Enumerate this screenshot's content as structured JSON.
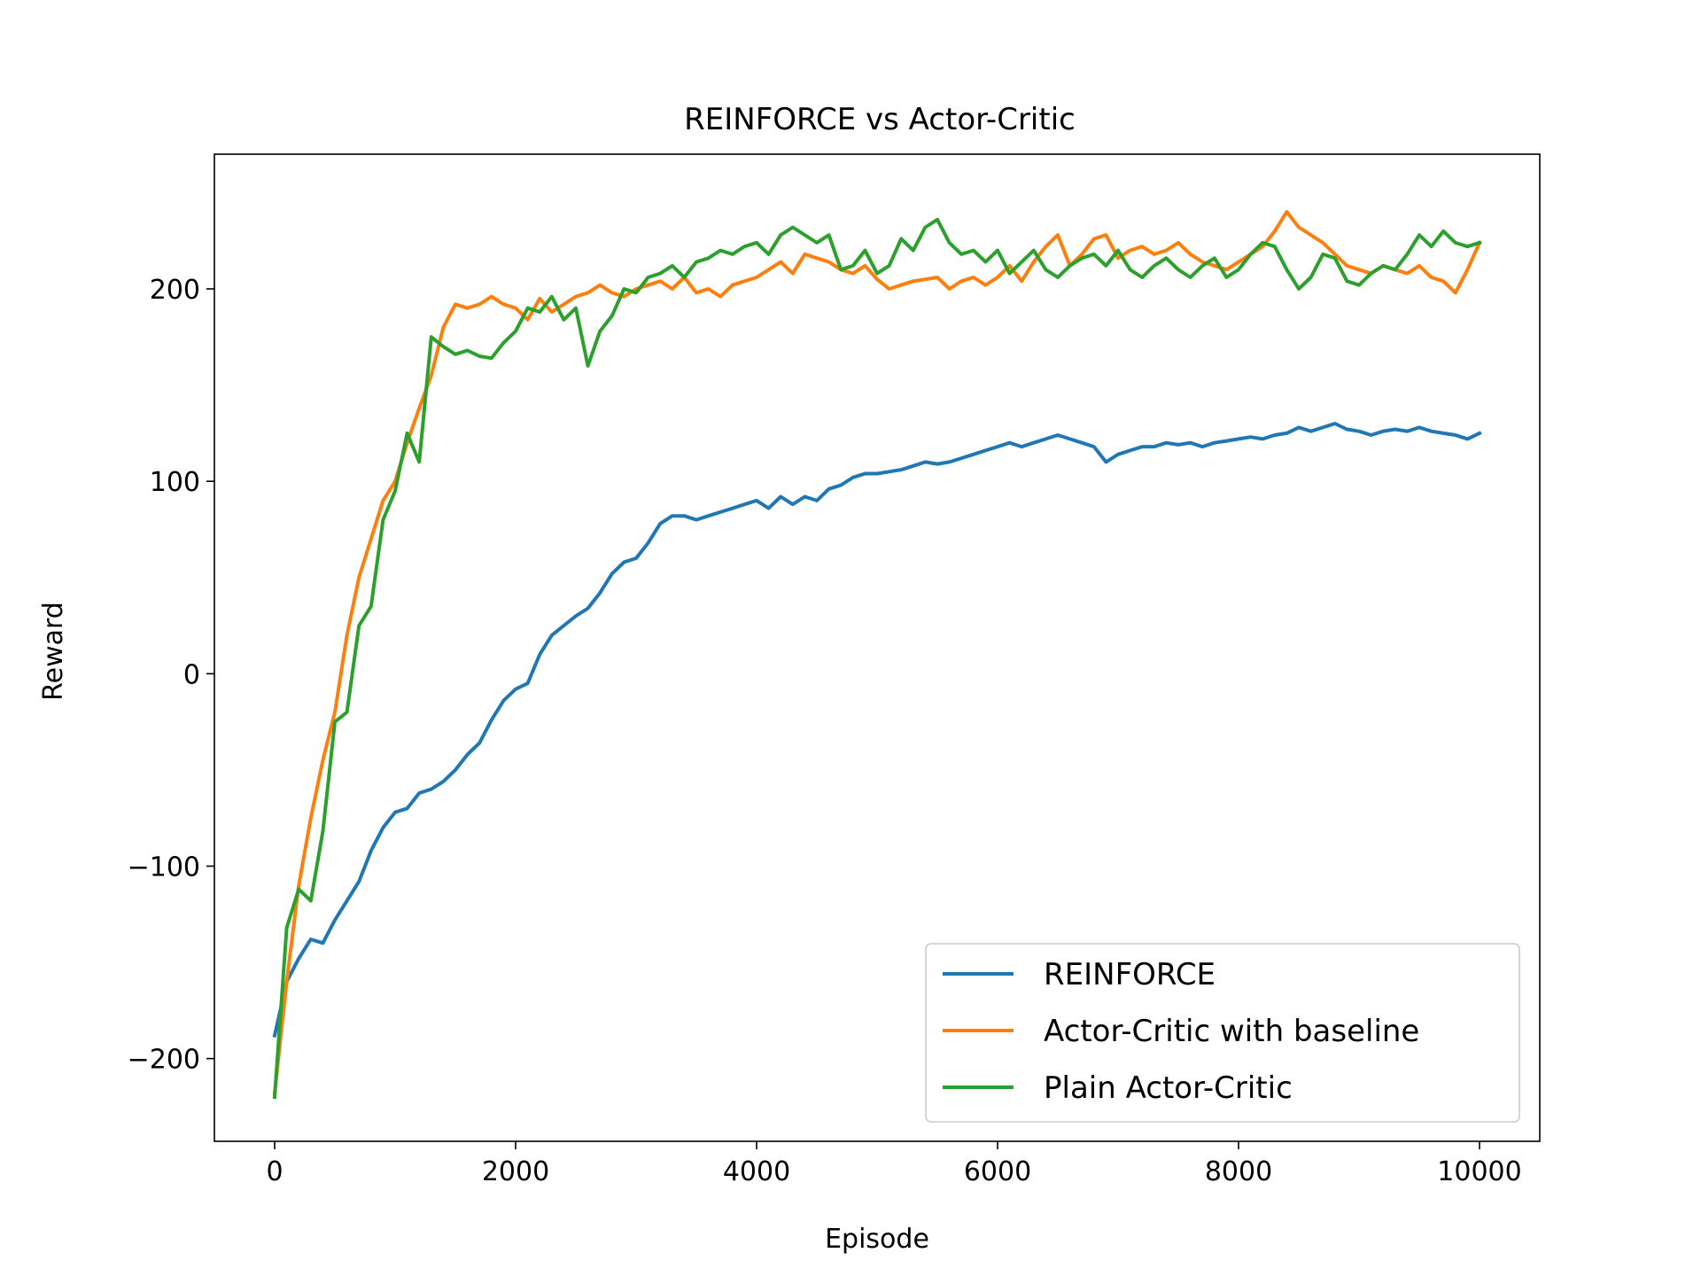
{
  "colors": {
    "reinforce": "#1f77b4",
    "actor_critic_baseline": "#ff7f0e",
    "plain_actor_critic": "#2ca02c"
  },
  "chart_data": {
    "type": "line",
    "title": "REINFORCE vs Actor-Critic",
    "xlabel": "Episode",
    "ylabel": "Reward",
    "xlim": [
      -500,
      10500
    ],
    "ylim": [
      -243,
      270
    ],
    "xticks": [
      0,
      2000,
      4000,
      6000,
      8000,
      10000
    ],
    "xtick_labels": [
      "0",
      "2000",
      "4000",
      "6000",
      "8000",
      "10000"
    ],
    "yticks": [
      -200,
      -100,
      0,
      100,
      200
    ],
    "ytick_labels": [
      "−200",
      "−100",
      "0",
      "100",
      "200"
    ],
    "grid": false,
    "legend_position": "lower right",
    "x": [
      0,
      100,
      200,
      300,
      400,
      500,
      600,
      700,
      800,
      900,
      1000,
      1100,
      1200,
      1300,
      1400,
      1500,
      1600,
      1700,
      1800,
      1900,
      2000,
      2100,
      2200,
      2300,
      2400,
      2500,
      2600,
      2700,
      2800,
      2900,
      3000,
      3100,
      3200,
      3300,
      3400,
      3500,
      3600,
      3700,
      3800,
      3900,
      4000,
      4100,
      4200,
      4300,
      4400,
      4500,
      4600,
      4700,
      4800,
      4900,
      5000,
      5100,
      5200,
      5300,
      5400,
      5500,
      5600,
      5700,
      5800,
      5900,
      6000,
      6100,
      6200,
      6300,
      6400,
      6500,
      6600,
      6700,
      6800,
      6900,
      7000,
      7100,
      7200,
      7300,
      7400,
      7500,
      7600,
      7700,
      7800,
      7900,
      8000,
      8100,
      8200,
      8300,
      8400,
      8500,
      8600,
      8700,
      8800,
      8900,
      9000,
      9100,
      9200,
      9300,
      9400,
      9500,
      9600,
      9700,
      9800,
      9900,
      10000
    ],
    "series": [
      {
        "name": "REINFORCE",
        "color_key": "reinforce",
        "values": [
          -188,
          -160,
          -148,
          -138,
          -140,
          -128,
          -118,
          -108,
          -92,
          -80,
          -72,
          -70,
          -62,
          -60,
          -56,
          -50,
          -42,
          -36,
          -24,
          -14,
          -8,
          -5,
          10,
          20,
          25,
          30,
          34,
          42,
          52,
          58,
          60,
          68,
          78,
          82,
          82,
          80,
          82,
          84,
          86,
          88,
          90,
          86,
          92,
          88,
          92,
          90,
          96,
          98,
          102,
          104,
          104,
          105,
          106,
          108,
          110,
          109,
          110,
          112,
          114,
          116,
          118,
          120,
          118,
          120,
          122,
          124,
          122,
          120,
          118,
          110,
          114,
          116,
          118,
          118,
          120,
          119,
          120,
          118,
          120,
          121,
          122,
          123,
          122,
          124,
          125,
          128,
          126,
          128,
          130,
          127,
          126,
          124,
          126,
          127,
          126,
          128,
          126,
          125,
          124,
          122,
          125
        ]
      },
      {
        "name": "Actor-Critic with baseline",
        "color_key": "actor_critic_baseline",
        "values": [
          -218,
          -160,
          -110,
          -75,
          -45,
          -20,
          20,
          50,
          70,
          90,
          100,
          120,
          138,
          155,
          180,
          192,
          190,
          192,
          196,
          192,
          190,
          184,
          195,
          188,
          192,
          196,
          198,
          202,
          198,
          196,
          200,
          202,
          204,
          200,
          206,
          198,
          200,
          196,
          202,
          204,
          206,
          210,
          214,
          208,
          218,
          216,
          214,
          210,
          208,
          212,
          205,
          200,
          202,
          204,
          205,
          206,
          200,
          204,
          206,
          202,
          206,
          212,
          204,
          214,
          222,
          228,
          212,
          218,
          226,
          228,
          216,
          220,
          222,
          218,
          220,
          224,
          218,
          214,
          212,
          210,
          214,
          218,
          222,
          230,
          240,
          232,
          228,
          224,
          218,
          212,
          210,
          208,
          212,
          210,
          208,
          212,
          206,
          204,
          198,
          210,
          224
        ]
      },
      {
        "name": "Plain Actor-Critic",
        "color_key": "plain_actor_critic",
        "values": [
          -220,
          -132,
          -112,
          -118,
          -82,
          -25,
          -20,
          25,
          35,
          80,
          95,
          125,
          110,
          175,
          170,
          166,
          168,
          165,
          164,
          172,
          178,
          190,
          188,
          196,
          184,
          190,
          160,
          178,
          186,
          200,
          198,
          206,
          208,
          212,
          206,
          214,
          216,
          220,
          218,
          222,
          224,
          218,
          228,
          232,
          228,
          224,
          228,
          210,
          212,
          220,
          208,
          212,
          226,
          220,
          232,
          236,
          224,
          218,
          220,
          214,
          220,
          208,
          214,
          220,
          210,
          206,
          212,
          216,
          218,
          212,
          220,
          210,
          206,
          212,
          216,
          210,
          206,
          212,
          216,
          206,
          210,
          218,
          224,
          222,
          210,
          200,
          206,
          218,
          216,
          204,
          202,
          208,
          212,
          210,
          218,
          228,
          222,
          230,
          224,
          222,
          224
        ]
      }
    ]
  }
}
